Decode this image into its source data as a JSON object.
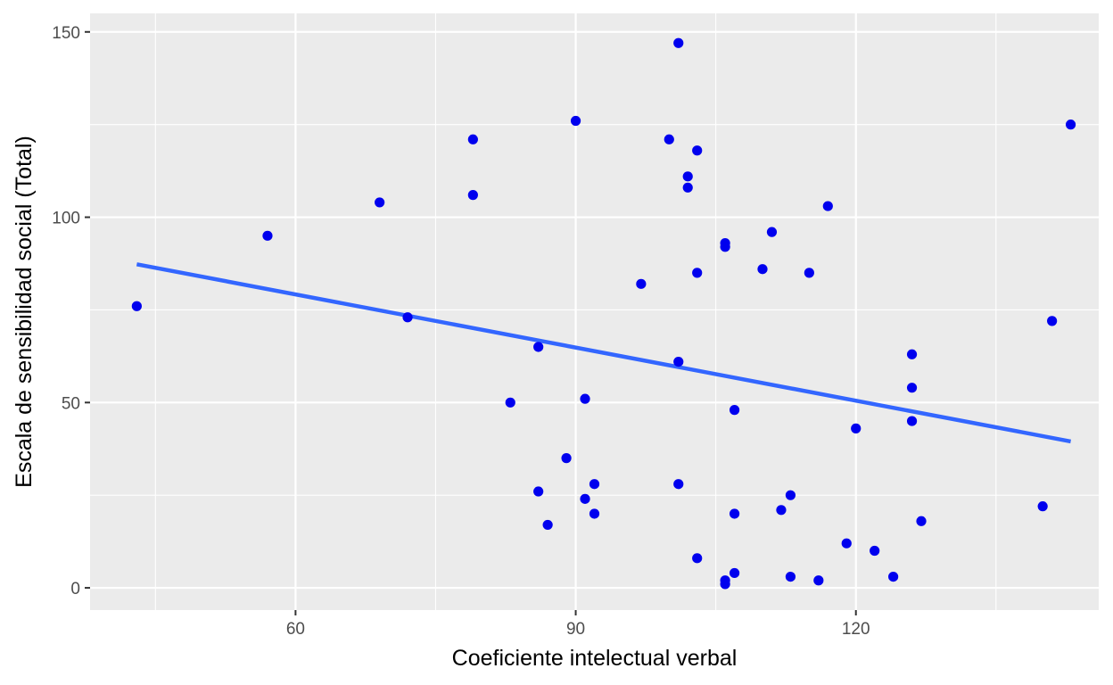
{
  "chart_data": {
    "type": "scatter",
    "title": "",
    "xlabel": "Coeficiente intelectual verbal",
    "ylabel": "Escala de sensibilidad social (Total)",
    "xlim": [
      38,
      146
    ],
    "ylim": [
      -6,
      155
    ],
    "x_ticks": [
      60,
      90,
      120
    ],
    "x_tick_labels": [
      "60",
      "90",
      "120"
    ],
    "x_minor_ticks": [
      45,
      75,
      105,
      135
    ],
    "y_ticks": [
      0,
      50,
      100,
      150
    ],
    "y_tick_labels": [
      "0",
      "50",
      "100",
      "150"
    ],
    "y_minor_ticks": [
      25,
      75,
      125
    ],
    "grid": true,
    "legend": "none",
    "colors": {
      "panel": "#ebebeb",
      "grid": "#ffffff",
      "points": "#0000ee",
      "trend_line": "#3366ff",
      "tick_text": "#4d4d4d",
      "tick_mark": "#333333"
    },
    "series": [
      {
        "points": [
          [
            43,
            76
          ],
          [
            57,
            95
          ],
          [
            69,
            104
          ],
          [
            72,
            73
          ],
          [
            79,
            121
          ],
          [
            79,
            106
          ],
          [
            83,
            50
          ],
          [
            86,
            65
          ],
          [
            86,
            26
          ],
          [
            87,
            17
          ],
          [
            89,
            35
          ],
          [
            90,
            126
          ],
          [
            91,
            51
          ],
          [
            91,
            24
          ],
          [
            92,
            28
          ],
          [
            92,
            20
          ],
          [
            97,
            82
          ],
          [
            100,
            121
          ],
          [
            101,
            147
          ],
          [
            101,
            61
          ],
          [
            101,
            28
          ],
          [
            102,
            111
          ],
          [
            102,
            108
          ],
          [
            103,
            118
          ],
          [
            103,
            85
          ],
          [
            103,
            8
          ],
          [
            106,
            93
          ],
          [
            106,
            92
          ],
          [
            106,
            2
          ],
          [
            106,
            1
          ],
          [
            107,
            48
          ],
          [
            107,
            20
          ],
          [
            107,
            4
          ],
          [
            110,
            86
          ],
          [
            111,
            96
          ],
          [
            112,
            21
          ],
          [
            113,
            25
          ],
          [
            113,
            3
          ],
          [
            115,
            85
          ],
          [
            116,
            2
          ],
          [
            117,
            103
          ],
          [
            119,
            12
          ],
          [
            120,
            43
          ],
          [
            122,
            10
          ],
          [
            124,
            3
          ],
          [
            126,
            63
          ],
          [
            126,
            54
          ],
          [
            126,
            45
          ],
          [
            127,
            18
          ],
          [
            140,
            22
          ],
          [
            141,
            72
          ],
          [
            143,
            125
          ]
        ]
      }
    ],
    "trend_line": {
      "x": [
        43,
        143
      ],
      "y": [
        87.3,
        39.5
      ]
    }
  }
}
